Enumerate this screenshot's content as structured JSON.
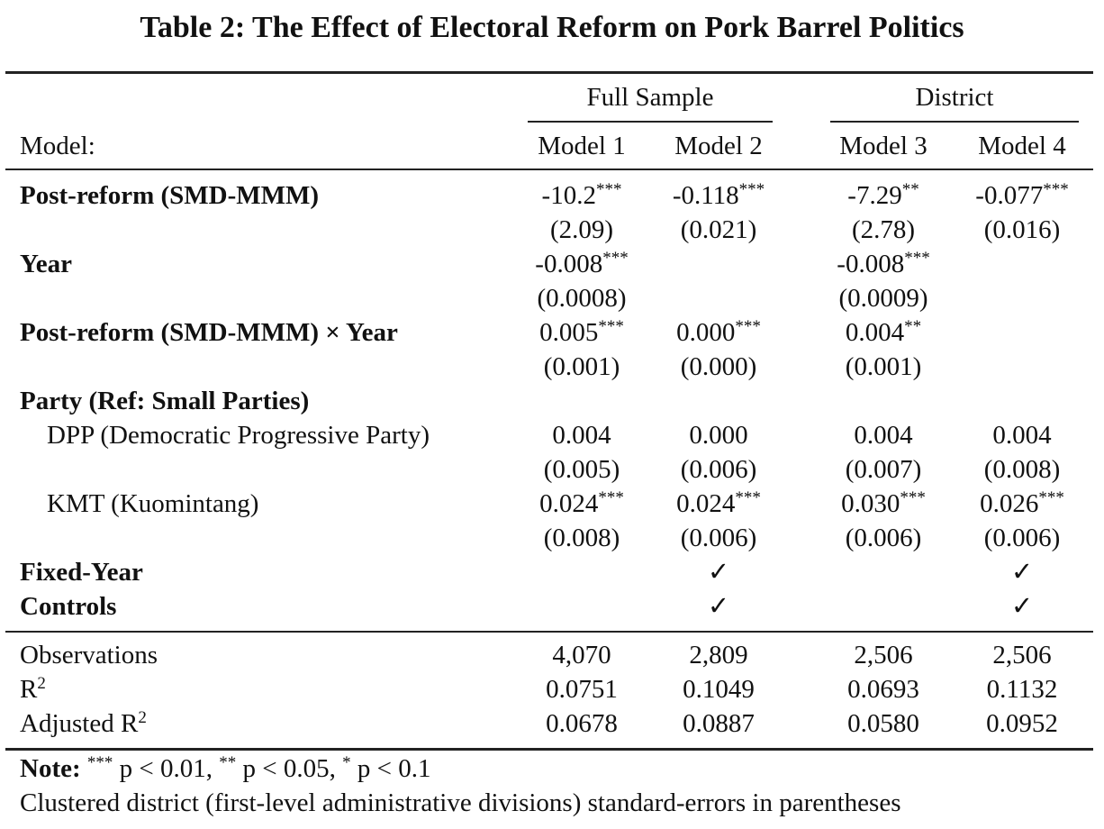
{
  "title": "Table 2: The Effect of Electoral Reform on Pork Barrel Politics",
  "groups": {
    "full_sample": "Full Sample",
    "district": "District"
  },
  "header": {
    "model_label": "Model:",
    "models": [
      "Model 1",
      "Model 2",
      "Model 3",
      "Model 4"
    ]
  },
  "rows": {
    "post_reform": {
      "label": "Post-reform (SMD-MMM)",
      "coef": [
        {
          "v": "-10.2",
          "s": "***"
        },
        {
          "v": "-0.118",
          "s": "***"
        },
        {
          "v": "-7.29",
          "s": "**"
        },
        {
          "v": "-0.077",
          "s": "***"
        }
      ],
      "se": [
        "(2.09)",
        "(0.021)",
        "(2.78)",
        "(0.016)"
      ]
    },
    "year": {
      "label": "Year",
      "coef": [
        {
          "v": "-0.008",
          "s": "***"
        },
        {
          "v": "",
          "s": ""
        },
        {
          "v": "-0.008",
          "s": "***"
        },
        {
          "v": "",
          "s": ""
        }
      ],
      "se": [
        "(0.0008)",
        "",
        "(0.0009)",
        ""
      ]
    },
    "interaction": {
      "label": "Post-reform (SMD-MMM) × Year",
      "coef": [
        {
          "v": "0.005",
          "s": "***"
        },
        {
          "v": "0.000",
          "s": "***"
        },
        {
          "v": "0.004",
          "s": "**"
        },
        {
          "v": "",
          "s": ""
        }
      ],
      "se": [
        "(0.001)",
        "(0.000)",
        "(0.001)",
        ""
      ]
    },
    "party_header": {
      "label": "Party (Ref: Small Parties)"
    },
    "dpp": {
      "label": "DPP (Democratic Progressive Party)",
      "coef": [
        {
          "v": "0.004",
          "s": ""
        },
        {
          "v": "0.000",
          "s": ""
        },
        {
          "v": "0.004",
          "s": ""
        },
        {
          "v": "0.004",
          "s": ""
        }
      ],
      "se": [
        "(0.005)",
        "(0.006)",
        "(0.007)",
        "(0.008)"
      ]
    },
    "kmt": {
      "label": "KMT (Kuomintang)",
      "coef": [
        {
          "v": "0.024",
          "s": "***"
        },
        {
          "v": "0.024",
          "s": "***"
        },
        {
          "v": "0.030",
          "s": "***"
        },
        {
          "v": "0.026",
          "s": "***"
        }
      ],
      "se": [
        "(0.008)",
        "(0.006)",
        "(0.006)",
        "(0.006)"
      ]
    },
    "fixed_year": {
      "label": "Fixed-Year",
      "marks": [
        "",
        "✓",
        "",
        "✓"
      ]
    },
    "controls": {
      "label": "Controls",
      "marks": [
        "",
        "✓",
        "",
        "✓"
      ]
    }
  },
  "stats": {
    "observations": {
      "label": "Observations",
      "values": [
        "4,070",
        "2,809",
        "2,506",
        "2,506"
      ]
    },
    "r2": {
      "label": "R",
      "sup": "2",
      "values": [
        "0.0751",
        "0.1049",
        "0.0693",
        "0.1132"
      ]
    },
    "adj_r2": {
      "label": "Adjusted R",
      "sup": "2",
      "values": [
        "0.0678",
        "0.0887",
        "0.0580",
        "0.0952"
      ]
    }
  },
  "notes": {
    "note_label": "Note:",
    "sig1_stars": "***",
    "sig1_text": " p < 0.01, ",
    "sig2_stars": "**",
    "sig2_text": " p < 0.05, ",
    "sig3_stars": "*",
    "sig3_text": " p < 0.1",
    "se_note": "Clustered district (first-level administrative divisions) standard-errors in parentheses"
  }
}
